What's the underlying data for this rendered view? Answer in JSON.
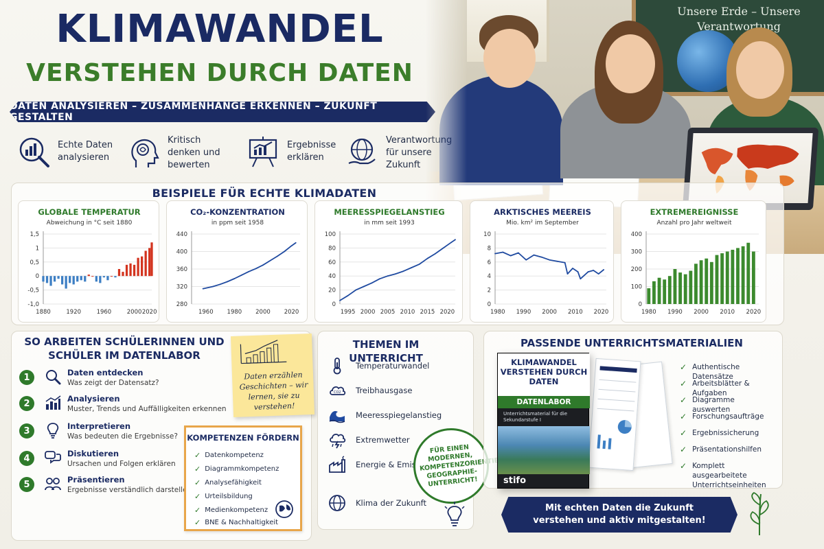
{
  "header": {
    "title": "KLIMAWANDEL",
    "subtitle": "VERSTEHEN DURCH DATEN",
    "tagline": "DATEN ANALYSIEREN – ZUSAMMENHÄNGE ERKENNEN – ZUKUNFT GESTALTEN"
  },
  "features": [
    {
      "icon": "chart-magnifier-icon",
      "text": "Echte Daten analysieren"
    },
    {
      "icon": "brain-head-icon",
      "text": "Kritisch denken und bewerten"
    },
    {
      "icon": "presentation-board-icon",
      "text": "Ergebnisse erklären"
    },
    {
      "icon": "globe-hand-icon",
      "text": "Verantwortung für unsere Zukunft"
    }
  ],
  "photo": {
    "board_text": "Unsere Erde – Unsere Verantwortung"
  },
  "examples": {
    "title": "BEISPIELE FÜR ECHTE KLIMADATEN"
  },
  "chart_data": [
    {
      "type": "bar",
      "title": "GLOBALE TEMPERATUR",
      "subtitle": "Abweichung in °C seit 1880",
      "x_ticks": [
        "1880",
        "1920",
        "1960",
        "2000",
        "2020"
      ],
      "y_ticks": [
        "1,5",
        "1",
        "0,5",
        "0",
        "-0,5",
        "-1,0"
      ],
      "ylim": [
        -1.0,
        1.5
      ],
      "xlim": [
        1880,
        2023
      ],
      "colors": {
        "negative": "#3d7fc4",
        "positive": "#d3341f"
      },
      "x": [
        1880,
        1885,
        1890,
        1895,
        1900,
        1905,
        1910,
        1915,
        1920,
        1925,
        1930,
        1935,
        1940,
        1945,
        1950,
        1955,
        1960,
        1965,
        1970,
        1975,
        1980,
        1985,
        1990,
        1995,
        2000,
        2005,
        2010,
        2015,
        2020,
        2023
      ],
      "values": [
        -0.2,
        -0.25,
        -0.35,
        -0.2,
        -0.1,
        -0.3,
        -0.45,
        -0.25,
        -0.3,
        -0.2,
        -0.15,
        -0.2,
        0.05,
        0.0,
        -0.2,
        -0.25,
        -0.05,
        -0.15,
        0.0,
        -0.05,
        0.25,
        0.15,
        0.4,
        0.45,
        0.4,
        0.65,
        0.7,
        0.9,
        1.0,
        1.2
      ]
    },
    {
      "type": "line",
      "title": "CO₂-KONZENTRATION",
      "subtitle": "in ppm seit 1958",
      "x_ticks": [
        "1960",
        "1980",
        "2000",
        "2020"
      ],
      "y_ticks": [
        "440",
        "400",
        "360",
        "320",
        "280"
      ],
      "ylim": [
        280,
        440
      ],
      "xlim": [
        1950,
        2026
      ],
      "color": "#1f4aa0",
      "x": [
        1958,
        1965,
        1970,
        1975,
        1980,
        1985,
        1990,
        1995,
        2000,
        2005,
        2010,
        2015,
        2020,
        2023
      ],
      "values": [
        315,
        320,
        325,
        331,
        338,
        346,
        354,
        361,
        369,
        379,
        389,
        400,
        413,
        420
      ]
    },
    {
      "type": "line",
      "title": "MEERESSPIEGELANSTIEG",
      "subtitle": "in mm seit 1993",
      "x_ticks": [
        "1995",
        "2000",
        "2005",
        "2010",
        "2015",
        "2020"
      ],
      "y_ticks": [
        "100",
        "80",
        "60",
        "40",
        "20",
        "0"
      ],
      "ylim": [
        0,
        100
      ],
      "xlim": [
        1993,
        2022
      ],
      "color": "#1f4aa0",
      "x": [
        1993,
        1995,
        1997,
        1999,
        2001,
        2003,
        2005,
        2007,
        2009,
        2011,
        2013,
        2015,
        2017,
        2019,
        2021,
        2022
      ],
      "values": [
        5,
        12,
        20,
        25,
        30,
        36,
        40,
        43,
        47,
        52,
        57,
        65,
        72,
        80,
        88,
        92
      ]
    },
    {
      "type": "line",
      "title": "ARKTISCHES MEEREIS",
      "subtitle": "Mio. km² im September",
      "x_ticks": [
        "1980",
        "1990",
        "2000",
        "2010",
        "2020"
      ],
      "y_ticks": [
        "10",
        "8",
        "6",
        "4",
        "2",
        "0"
      ],
      "ylim": [
        0,
        10
      ],
      "xlim": [
        1979,
        2022
      ],
      "color": "#1f4aa0",
      "x": [
        1979,
        1982,
        1985,
        1988,
        1991,
        1994,
        1997,
        2000,
        2003,
        2006,
        2007,
        2009,
        2011,
        2012,
        2015,
        2017,
        2019,
        2021
      ],
      "values": [
        7.2,
        7.4,
        6.9,
        7.3,
        6.3,
        7.0,
        6.7,
        6.3,
        6.1,
        5.9,
        4.3,
        5.1,
        4.6,
        3.6,
        4.6,
        4.8,
        4.3,
        4.9
      ]
    },
    {
      "type": "bar",
      "title": "EXTREMEREIGNISSE",
      "subtitle": "Anzahl pro Jahr weltweit",
      "x_ticks": [
        "1980",
        "1990",
        "2000",
        "2010",
        "2020"
      ],
      "y_ticks": [
        "400",
        "300",
        "200",
        "100",
        "0"
      ],
      "ylim": [
        0,
        400
      ],
      "xlim": [
        1979,
        2022
      ],
      "color": "#3c8a2e",
      "x": [
        1980,
        1982,
        1984,
        1986,
        1988,
        1990,
        1992,
        1994,
        1996,
        1998,
        2000,
        2002,
        2004,
        2006,
        2008,
        2010,
        2012,
        2014,
        2016,
        2018,
        2020
      ],
      "values": [
        90,
        130,
        150,
        140,
        160,
        200,
        180,
        170,
        190,
        230,
        250,
        260,
        240,
        280,
        290,
        300,
        310,
        320,
        330,
        350,
        300
      ]
    }
  ],
  "workflow": {
    "title": "SO ARBEITEN SCHÜLERINNEN UND SCHÜLER IM DATENLABOR",
    "steps": [
      {
        "num": "1",
        "icon": "magnifier-icon",
        "title": "Daten entdecken",
        "desc": "Was zeigt der Datensatz?"
      },
      {
        "num": "2",
        "icon": "bar-chart-icon",
        "title": "Analysieren",
        "desc": "Muster, Trends und Auffälligkeiten erkennen"
      },
      {
        "num": "3",
        "icon": "lightbulb-icon",
        "title": "Interpretieren",
        "desc": "Was bedeuten die Ergebnisse?"
      },
      {
        "num": "4",
        "icon": "speech-bubbles-icon",
        "title": "Diskutieren",
        "desc": "Ursachen und Folgen erklären"
      },
      {
        "num": "5",
        "icon": "people-icon",
        "title": "Präsentieren",
        "desc": "Ergebnisse verständlich darstellen"
      }
    ],
    "sticky_text": "Daten erzählen Geschichten – wir lernen, sie zu verstehen!"
  },
  "competences": {
    "title": "KOMPETENZEN FÖRDERN",
    "items": [
      "Datenkompetenz",
      "Diagrammkompetenz",
      "Analysefähigkeit",
      "Urteilsbildung",
      "Medienkompetenz",
      "BNE & Nachhaltigkeit"
    ]
  },
  "topics": {
    "title": "THEMEN IM UNTERRICHT",
    "items": [
      {
        "icon": "thermometer-icon",
        "label": "Temperaturwandel"
      },
      {
        "icon": "co2-cloud-icon",
        "label": "Treibhausgase"
      },
      {
        "icon": "wave-icon",
        "label": "Meeresspiegelanstieg"
      },
      {
        "icon": "storm-cloud-icon",
        "label": "Extremwetter"
      },
      {
        "icon": "factory-icon",
        "label": "Energie & Emissionen"
      },
      {
        "icon": "globe-icon",
        "label": "Klima der Zukunft"
      }
    ],
    "badge": "FÜR EINEN MODERNEN, KOMPETENZORIENTIERTEN GEOGRAPHIE-UNTERRICHT!"
  },
  "materials": {
    "title": "PASSENDE UNTERRICHTSMATERIALIEN",
    "box_title": "KLIMAWANDEL VERSTEHEN DURCH DATEN",
    "box_band": "DATENLABOR",
    "box_desc": "Unterrichtsmaterial für die Sekundarstufe I",
    "box_brand": "stifo",
    "items": [
      "Authentische Datensätze",
      "Arbeitsblätter & Aufgaben",
      "Diagramme auswerten",
      "Forschungsaufträge",
      "Ergebnissicherung",
      "Präsentationshilfen",
      "Komplett ausgearbeitete Unterrichtseinheiten"
    ],
    "cta": "Mit echten Daten die Zukunft verstehen und aktiv mitgestalten!"
  },
  "colors": {
    "navy": "#1b2b63",
    "green": "#2f7a2b",
    "red": "#d3341f",
    "blue": "#1f4aa0"
  }
}
